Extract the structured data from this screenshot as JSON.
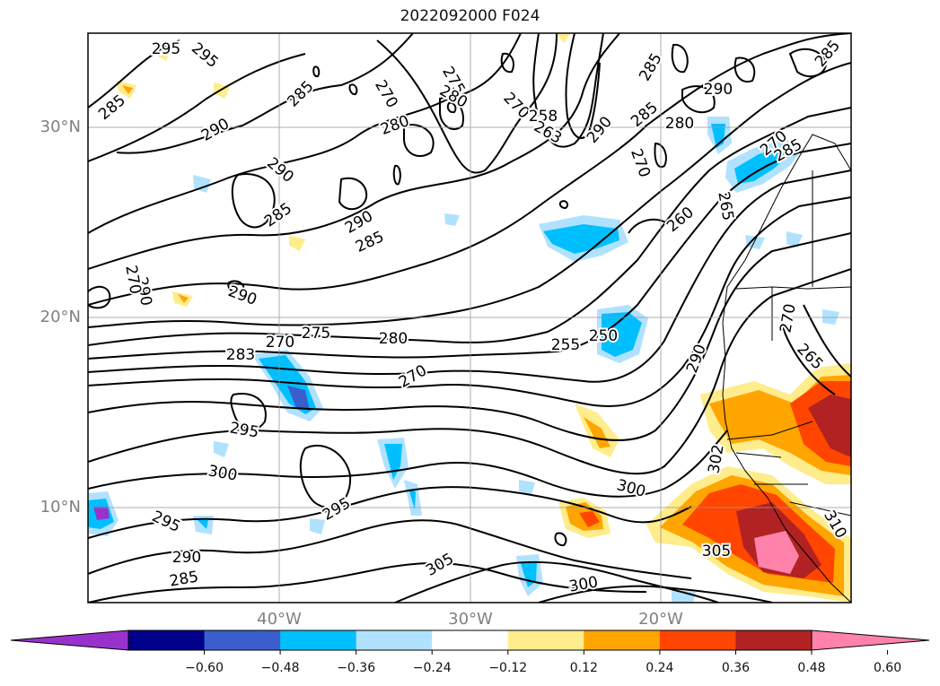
{
  "title": "2022092000 F024",
  "lat_labels": [
    "30°N",
    "20°N",
    "10°N"
  ],
  "lon_labels": [
    "40°W",
    "30°W",
    "20°W"
  ],
  "colorbar": {
    "colors": [
      "#9932cc",
      "#00008b",
      "#3a5fcd",
      "#00bfff",
      "#b0e2ff",
      "#ffffff",
      "#ffec8b",
      "#ffa500",
      "#ff4500",
      "#b22222",
      "#ff82ab"
    ],
    "ticks": [
      "−0.60",
      "−0.48",
      "−0.36",
      "−0.24",
      "−0.12",
      "0.12",
      "0.24",
      "0.36",
      "0.48",
      "0.60"
    ]
  },
  "contour_labels": [
    "295",
    "285",
    "295",
    "290",
    "290",
    "285",
    "285",
    "290",
    "285",
    "290",
    "270",
    "280",
    "275",
    "280",
    "270",
    "258",
    "263",
    "290",
    "285",
    "285",
    "280",
    "290",
    "270",
    "260",
    "265",
    "270",
    "285",
    "290",
    "270",
    "255",
    "250",
    "270",
    "275",
    "280",
    "270",
    "283",
    "295",
    "300",
    "295",
    "290",
    "285",
    "295",
    "300",
    "305",
    "300",
    "305",
    "302",
    "310",
    "290",
    "270",
    "265",
    "285"
  ]
}
